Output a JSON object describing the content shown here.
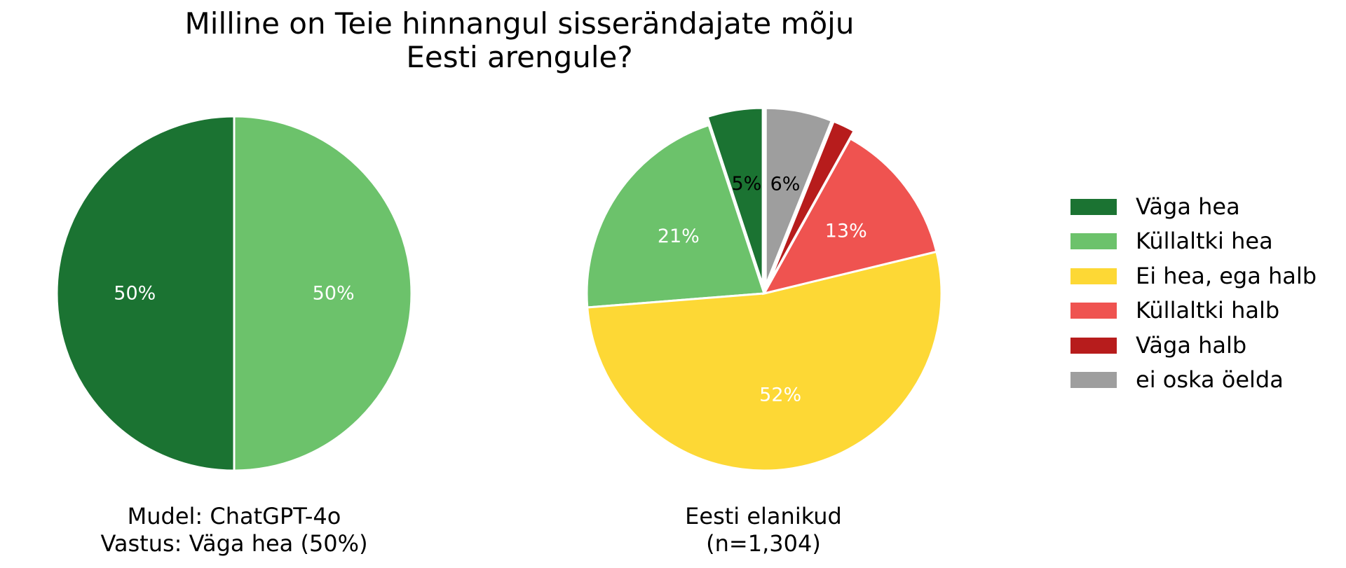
{
  "title": {
    "line1": "Milline on Teie hinnangul sisserändajate mõju",
    "line2": "Eesti arengule?"
  },
  "legend": [
    {
      "label": "Väga hea",
      "color": "#1b7332"
    },
    {
      "label": "Küllaltki hea",
      "color": "#6cc26b"
    },
    {
      "label": "Ei hea, ega halb",
      "color": "#fdd835"
    },
    {
      "label": "Küllaltki halb",
      "color": "#ef5350"
    },
    {
      "label": "Väga halb",
      "color": "#b71c1c"
    },
    {
      "label": "ei oska öelda",
      "color": "#9e9e9e"
    }
  ],
  "chart_data": [
    {
      "type": "pie",
      "caption_line1": "Mudel: ChatGPT-4o",
      "caption_line2": "Vastus: Väga hea (50%)",
      "start_angle_deg": 90,
      "direction": "counterclockwise",
      "slices": [
        {
          "label": "Väga hea",
          "value": 50,
          "display": "50%",
          "color": "#1b7332",
          "label_color": "#ffffff",
          "exploded": false
        },
        {
          "label": "Küllaltki hea",
          "value": 50,
          "display": "50%",
          "color": "#6cc26b",
          "label_color": "#ffffff",
          "exploded": false
        }
      ]
    },
    {
      "type": "pie",
      "caption_line1": "Eesti elanikud",
      "caption_line2": "(n=1,304)",
      "start_angle_deg": 90,
      "direction": "counterclockwise",
      "slices": [
        {
          "label": "Väga hea",
          "value": 5,
          "display": "5%",
          "color": "#1b7332",
          "label_color": "#000000",
          "exploded": true
        },
        {
          "label": "Küllaltki hea",
          "value": 21,
          "display": "21%",
          "color": "#6cc26b",
          "label_color": "#ffffff",
          "exploded": false
        },
        {
          "label": "Ei hea, ega halb",
          "value": 52,
          "display": "52%",
          "color": "#fdd835",
          "label_color": "#ffffff",
          "exploded": false
        },
        {
          "label": "Küllaltki halb",
          "value": 13,
          "display": "13%",
          "color": "#ef5350",
          "label_color": "#ffffff",
          "exploded": false
        },
        {
          "label": "Väga halb",
          "value": 2,
          "display": "",
          "color": "#b71c1c",
          "label_color": "#ffffff",
          "exploded": true
        },
        {
          "label": "ei oska öelda",
          "value": 6,
          "display": "6%",
          "color": "#9e9e9e",
          "label_color": "#000000",
          "exploded": true
        }
      ]
    }
  ]
}
